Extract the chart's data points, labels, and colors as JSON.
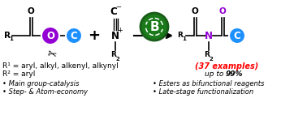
{
  "bg_color": "#ffffff",
  "r1_text": "R¹ = aryl, alkyl, alkenyl, alkynyl",
  "r2_text": "R² = aryl",
  "bullet1": "• Main group-catalysis",
  "bullet2": "• Step- & Atom-economy",
  "bullet3": "• Esters as bifunctional reagents",
  "bullet4": "• Late-stage functionalization",
  "examples_text": "(37 examples)",
  "yield_italic": "up to ",
  "yield_bold": "99%",
  "circle_O_color": "#9400D3",
  "circle_C_color": "#1E90FF",
  "circle_B_color": "#1a7a1a",
  "examples_color": "#FF0000",
  "font_size_labels": 6.5,
  "font_size_bullets": 6.0,
  "font_size_chem": 7.5,
  "font_size_circle": 8.5
}
